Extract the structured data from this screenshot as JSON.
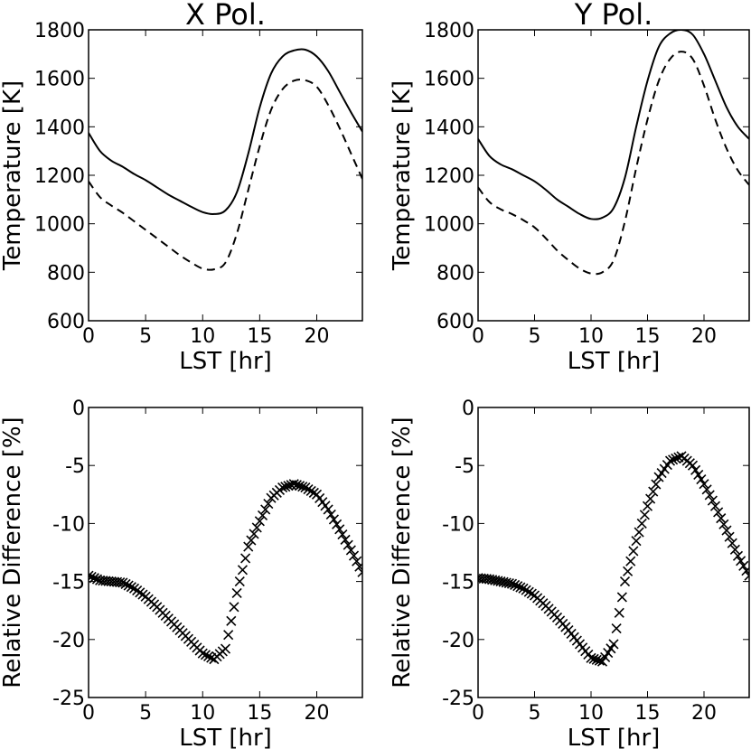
{
  "chart_data": [
    {
      "type": "line",
      "title": "X Pol.",
      "xlabel": "LST [hr]",
      "ylabel": "Temperature [K]",
      "xlim": [
        0,
        24
      ],
      "ylim": [
        600,
        1800
      ],
      "xticks": [
        0,
        5,
        10,
        15,
        20
      ],
      "yticks": [
        600,
        800,
        1000,
        1200,
        1400,
        1600,
        1800
      ],
      "series": [
        {
          "name": "solid",
          "style": "solid",
          "x": [
            0,
            1,
            2,
            3,
            4,
            5,
            6,
            7,
            8,
            9,
            10,
            11,
            12,
            13,
            14,
            15,
            16,
            17,
            18,
            19,
            20,
            21,
            22,
            23,
            24
          ],
          "values": [
            1375,
            1300,
            1260,
            1235,
            1205,
            1180,
            1150,
            1120,
            1095,
            1070,
            1048,
            1040,
            1055,
            1130,
            1290,
            1480,
            1620,
            1690,
            1715,
            1718,
            1690,
            1630,
            1545,
            1460,
            1380
          ]
        },
        {
          "name": "dashed",
          "style": "dashed",
          "x": [
            0,
            1,
            2,
            3,
            4,
            5,
            6,
            7,
            8,
            9,
            10,
            11,
            12,
            13,
            14,
            15,
            16,
            17,
            18,
            19,
            20,
            21,
            22,
            23,
            24
          ],
          "values": [
            1175,
            1110,
            1075,
            1045,
            1010,
            975,
            940,
            905,
            870,
            840,
            815,
            812,
            840,
            960,
            1140,
            1320,
            1470,
            1555,
            1590,
            1592,
            1565,
            1490,
            1395,
            1290,
            1185
          ]
        }
      ]
    },
    {
      "type": "line",
      "title": "Y Pol.",
      "xlabel": "LST [hr]",
      "ylabel": "Temperature [K]",
      "xlim": [
        0,
        24
      ],
      "ylim": [
        600,
        1800
      ],
      "xticks": [
        0,
        5,
        10,
        15,
        20
      ],
      "yticks": [
        600,
        800,
        1000,
        1200,
        1400,
        1600,
        1800
      ],
      "series": [
        {
          "name": "solid",
          "style": "solid",
          "x": [
            0,
            1,
            2,
            3,
            4,
            5,
            6,
            7,
            8,
            9,
            10,
            11,
            12,
            13,
            14,
            15,
            16,
            17,
            18,
            19,
            20,
            21,
            22,
            23,
            24
          ],
          "values": [
            1350,
            1280,
            1245,
            1225,
            1200,
            1175,
            1140,
            1100,
            1070,
            1040,
            1020,
            1025,
            1065,
            1190,
            1400,
            1590,
            1730,
            1785,
            1800,
            1780,
            1700,
            1590,
            1480,
            1400,
            1350
          ]
        },
        {
          "name": "dashed",
          "style": "dashed",
          "x": [
            0,
            1,
            2,
            3,
            4,
            5,
            6,
            7,
            8,
            9,
            10,
            11,
            12,
            13,
            14,
            15,
            16,
            17,
            18,
            19,
            20,
            21,
            22,
            23,
            24
          ],
          "values": [
            1150,
            1090,
            1060,
            1040,
            1015,
            985,
            940,
            890,
            850,
            815,
            795,
            800,
            850,
            1010,
            1230,
            1430,
            1590,
            1680,
            1710,
            1680,
            1570,
            1430,
            1310,
            1220,
            1160
          ]
        }
      ]
    },
    {
      "type": "scatter",
      "marker": "x",
      "title": "",
      "xlabel": "LST [hr]",
      "ylabel": "Relative Difference [%]",
      "xlim": [
        0,
        24
      ],
      "ylim": [
        -25,
        0
      ],
      "xticks": [
        0,
        5,
        10,
        15,
        20
      ],
      "yticks": [
        -25,
        -20,
        -15,
        -10,
        -5,
        0
      ],
      "series": [
        {
          "name": "relative-difference",
          "x": [
            0,
            1,
            2,
            3,
            4,
            5,
            6,
            7,
            8,
            9,
            10,
            11,
            12,
            13,
            14,
            15,
            16,
            17,
            18,
            19,
            20,
            21,
            22,
            23,
            24
          ],
          "values": [
            -14.5,
            -14.9,
            -15.0,
            -15.1,
            -15.6,
            -16.3,
            -17.2,
            -18.2,
            -19.2,
            -20.2,
            -21.2,
            -21.7,
            -20.8,
            -16.0,
            -12.0,
            -9.8,
            -7.8,
            -6.9,
            -6.6,
            -6.9,
            -7.5,
            -8.8,
            -10.5,
            -12.3,
            -14.2
          ]
        }
      ]
    },
    {
      "type": "scatter",
      "marker": "x",
      "title": "",
      "xlabel": "LST [hr]",
      "ylabel": "Relative Difference [%]",
      "xlim": [
        0,
        24
      ],
      "ylim": [
        -25,
        0
      ],
      "xticks": [
        0,
        5,
        10,
        15,
        20
      ],
      "yticks": [
        -25,
        -20,
        -15,
        -10,
        -5,
        0
      ],
      "series": [
        {
          "name": "relative-difference",
          "x": [
            0,
            1,
            2,
            3,
            4,
            5,
            6,
            7,
            8,
            9,
            10,
            11,
            12,
            13,
            14,
            15,
            16,
            17,
            18,
            19,
            20,
            21,
            22,
            23,
            24
          ],
          "values": [
            -14.7,
            -14.8,
            -15.0,
            -15.2,
            -15.6,
            -16.2,
            -17.1,
            -18.1,
            -19.2,
            -20.4,
            -21.6,
            -21.9,
            -20.4,
            -15.0,
            -11.5,
            -8.5,
            -6.0,
            -4.6,
            -4.2,
            -5.0,
            -6.6,
            -8.5,
            -10.6,
            -12.8,
            -14.5
          ]
        }
      ]
    }
  ]
}
